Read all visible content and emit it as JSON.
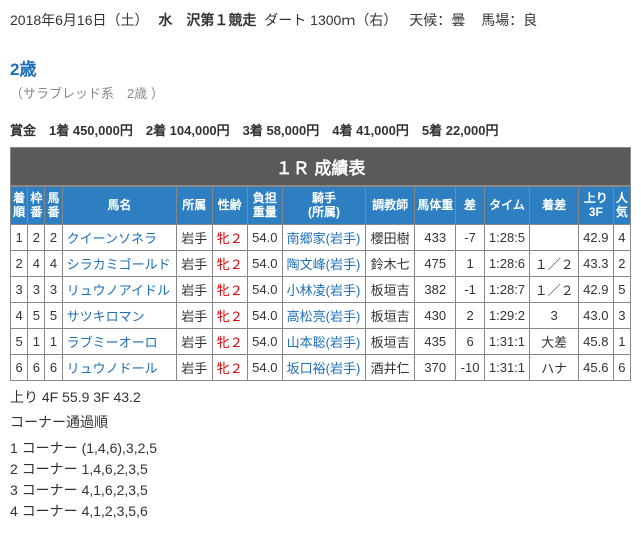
{
  "header": {
    "date": "2018年6月16日（土）",
    "venue_race": "水　沢第１競走",
    "surface": "ダート 1300ｍ（右）",
    "weather_label": "天候：",
    "weather_val": "曇",
    "track_label": "馬場：",
    "track_val": "良"
  },
  "class": {
    "main": "2歳",
    "sub": "（サラブレッド系　2歳 ）"
  },
  "prize_line": "賞金　1着 450,000円　2着 104,000円　3着 58,000円　4着 41,000円　5着 22,000円",
  "result_title": "１Ｒ 成績表",
  "columns": [
    "着順",
    "枠番",
    "馬番",
    "馬名",
    "所属",
    "性齢",
    "負担重量",
    "騎手(所属)",
    "調教師",
    "馬体重",
    "差",
    "タイム",
    "着差",
    "上り3F",
    "人気"
  ],
  "column_multiline": {
    "finish": [
      "着",
      "順"
    ],
    "frame": [
      "枠",
      "番"
    ],
    "horse_num": [
      "馬",
      "番"
    ],
    "weight": [
      "負担",
      "重量"
    ],
    "jockey": [
      "騎手",
      "(所属)"
    ],
    "agari": [
      "上り",
      "3F"
    ],
    "pop": [
      "人",
      "気"
    ]
  },
  "rows": [
    {
      "fin": "1",
      "fr": "2",
      "hn": "2",
      "name": "クイーンソネラ",
      "bel": "岩手",
      "sa": "牝２",
      "lw": "54.0",
      "jk": "南郷家(岩手)",
      "tr": "櫻田樹",
      "bw": "433",
      "d": "-7",
      "tm": "1:28:5",
      "mg": "",
      "ag": "42.9",
      "pp": "4"
    },
    {
      "fin": "2",
      "fr": "4",
      "hn": "4",
      "name": "シラカミゴールド",
      "bel": "岩手",
      "sa": "牝２",
      "lw": "54.0",
      "jk": "陶文峰(岩手)",
      "tr": "鈴木七",
      "bw": "475",
      "d": "1",
      "tm": "1:28:6",
      "mg": "１／２",
      "ag": "43.3",
      "pp": "2"
    },
    {
      "fin": "3",
      "fr": "3",
      "hn": "3",
      "name": "リュウノアイドル",
      "bel": "岩手",
      "sa": "牝２",
      "lw": "54.0",
      "jk": "小林凌(岩手)",
      "tr": "板垣吉",
      "bw": "382",
      "d": "-1",
      "tm": "1:28:7",
      "mg": "１／２",
      "ag": "42.9",
      "pp": "5"
    },
    {
      "fin": "4",
      "fr": "5",
      "hn": "5",
      "name": "サツキロマン",
      "bel": "岩手",
      "sa": "牝２",
      "lw": "54.0",
      "jk": "高松亮(岩手)",
      "tr": "板垣吉",
      "bw": "430",
      "d": "2",
      "tm": "1:29:2",
      "mg": "3",
      "ag": "43.0",
      "pp": "3"
    },
    {
      "fin": "5",
      "fr": "1",
      "hn": "1",
      "name": "ラブミーオーロ",
      "bel": "岩手",
      "sa": "牝２",
      "lw": "54.0",
      "jk": "山本聡(岩手)",
      "tr": "板垣吉",
      "bw": "435",
      "d": "6",
      "tm": "1:31:1",
      "mg": "大差",
      "ag": "45.8",
      "pp": "1"
    },
    {
      "fin": "6",
      "fr": "6",
      "hn": "6",
      "name": "リュウノドール",
      "bel": "岩手",
      "sa": "牝２",
      "lw": "54.0",
      "jk": "坂口裕(岩手)",
      "tr": "酒井仁",
      "bw": "370",
      "d": "-10",
      "tm": "1:31:1",
      "mg": "ハナ",
      "ag": "45.6",
      "pp": "6"
    }
  ],
  "agari_line": "上り 4F 55.9 3F 43.2",
  "corner_title": "コーナー通過順",
  "corners": [
    "1 コーナー (1,4,6),3,2,5",
    "2 コーナー 1,4,6,2,3,5",
    "3 コーナー 4,1,6,2,3,5",
    "4 コーナー 4,1,2,3,5,6"
  ],
  "colors": {
    "header_bg": "#2d7fc1",
    "title_bg": "#5a5a5a",
    "link": "#1e6fb8",
    "sexage": "#d00"
  }
}
